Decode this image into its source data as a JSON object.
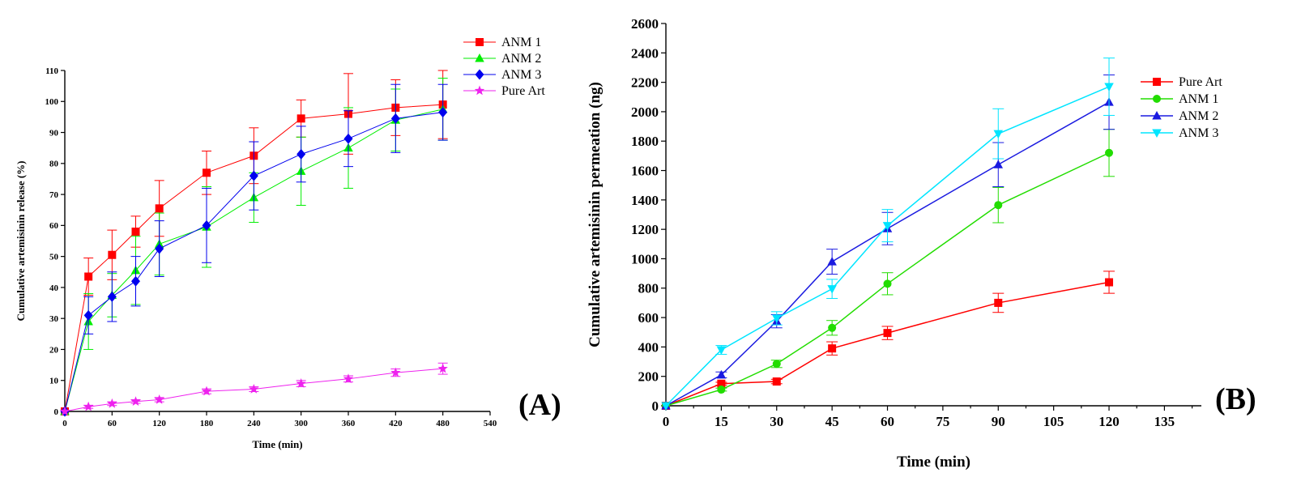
{
  "chart_data": [
    {
      "type": "line",
      "panel_label": "(A)",
      "xlabel": "Time (min)",
      "ylabel": "Cumulative artemisinin release (%)",
      "xlim": [
        0,
        540
      ],
      "ylim": [
        0,
        110
      ],
      "xticks": [
        0,
        60,
        120,
        180,
        240,
        300,
        360,
        420,
        480,
        540
      ],
      "yticks": [
        0,
        10,
        20,
        30,
        40,
        50,
        60,
        70,
        80,
        90,
        100,
        110
      ],
      "legend_position": "top-right",
      "series": [
        {
          "name": "ANM  1",
          "color": "#ff0000",
          "marker": "square",
          "x": [
            0,
            30,
            60,
            90,
            120,
            180,
            240,
            300,
            360,
            420,
            480
          ],
          "y": [
            0,
            43.5,
            50.5,
            58,
            65.5,
            77,
            82.5,
            94.5,
            96,
            98,
            99
          ],
          "err": [
            0,
            6,
            8,
            5,
            9,
            7,
            9,
            6,
            13,
            9,
            11
          ]
        },
        {
          "name": "ANM 2",
          "color": "#00ee00",
          "marker": "triangle-up",
          "x": [
            0,
            30,
            60,
            90,
            120,
            180,
            240,
            300,
            360,
            420,
            480
          ],
          "y": [
            0,
            29,
            37.5,
            45.5,
            54,
            59.5,
            69,
            77.5,
            85,
            94,
            97.5
          ],
          "err": [
            0,
            9,
            7,
            11,
            10,
            13,
            8,
            11,
            13,
            10,
            10
          ]
        },
        {
          "name": "ANM 3",
          "color": "#0000ee",
          "marker": "diamond",
          "x": [
            0,
            30,
            60,
            90,
            120,
            180,
            240,
            300,
            360,
            420,
            480
          ],
          "y": [
            0,
            31,
            37,
            42,
            52.5,
            60,
            76,
            83,
            88,
            94.5,
            96.5
          ],
          "err": [
            0,
            6,
            8,
            8,
            9,
            12,
            11,
            9,
            9,
            11,
            9
          ]
        },
        {
          "name": "Pure Art",
          "color": "#ee22ee",
          "marker": "star",
          "x": [
            0,
            30,
            60,
            90,
            120,
            180,
            240,
            300,
            360,
            420,
            480
          ],
          "y": [
            0,
            1.5,
            2.5,
            3.2,
            3.8,
            6.5,
            7.2,
            9,
            10.5,
            12.5,
            13.8
          ],
          "err": [
            0,
            0.5,
            0.6,
            0.6,
            0.7,
            0.8,
            0.8,
            1,
            1,
            1.2,
            1.8
          ]
        }
      ]
    },
    {
      "type": "line",
      "panel_label": "(B)",
      "xlabel": "Time (min)",
      "ylabel": "Cumulative artemisinin permeation (ng)",
      "xlim": [
        0,
        145
      ],
      "ylim": [
        0,
        2600
      ],
      "xticks": [
        0,
        15,
        30,
        45,
        60,
        75,
        90,
        105,
        120,
        135
      ],
      "yticks": [
        0,
        200,
        400,
        600,
        800,
        1000,
        1200,
        1400,
        1600,
        1800,
        2000,
        2200,
        2400,
        2600
      ],
      "legend_position": "top-right",
      "series": [
        {
          "name": "Pure Art",
          "color": "#ff0000",
          "marker": "square",
          "x": [
            0,
            15,
            30,
            45,
            60,
            90,
            120
          ],
          "y": [
            0,
            150,
            165,
            390,
            495,
            700,
            840
          ],
          "err": [
            0,
            10,
            15,
            45,
            45,
            65,
            75
          ]
        },
        {
          "name": "ANM  1",
          "color": "#22dd00",
          "marker": "circle",
          "x": [
            0,
            15,
            30,
            45,
            60,
            90,
            120
          ],
          "y": [
            0,
            110,
            285,
            530,
            830,
            1365,
            1720
          ],
          "err": [
            0,
            10,
            25,
            50,
            75,
            120,
            160
          ]
        },
        {
          "name": "ANM 2",
          "color": "#1a1ae0",
          "marker": "triangle-up",
          "x": [
            0,
            15,
            30,
            45,
            60,
            90,
            120
          ],
          "y": [
            0,
            210,
            575,
            980,
            1205,
            1640,
            2065
          ],
          "err": [
            0,
            20,
            45,
            85,
            110,
            150,
            185
          ]
        },
        {
          "name": "ANM 3",
          "color": "#00e5ff",
          "marker": "triangle-down",
          "x": [
            0,
            15,
            30,
            45,
            60,
            90,
            120
          ],
          "y": [
            0,
            380,
            595,
            795,
            1225,
            1850,
            2170
          ],
          "err": [
            0,
            30,
            45,
            65,
            110,
            170,
            195
          ]
        }
      ]
    }
  ]
}
